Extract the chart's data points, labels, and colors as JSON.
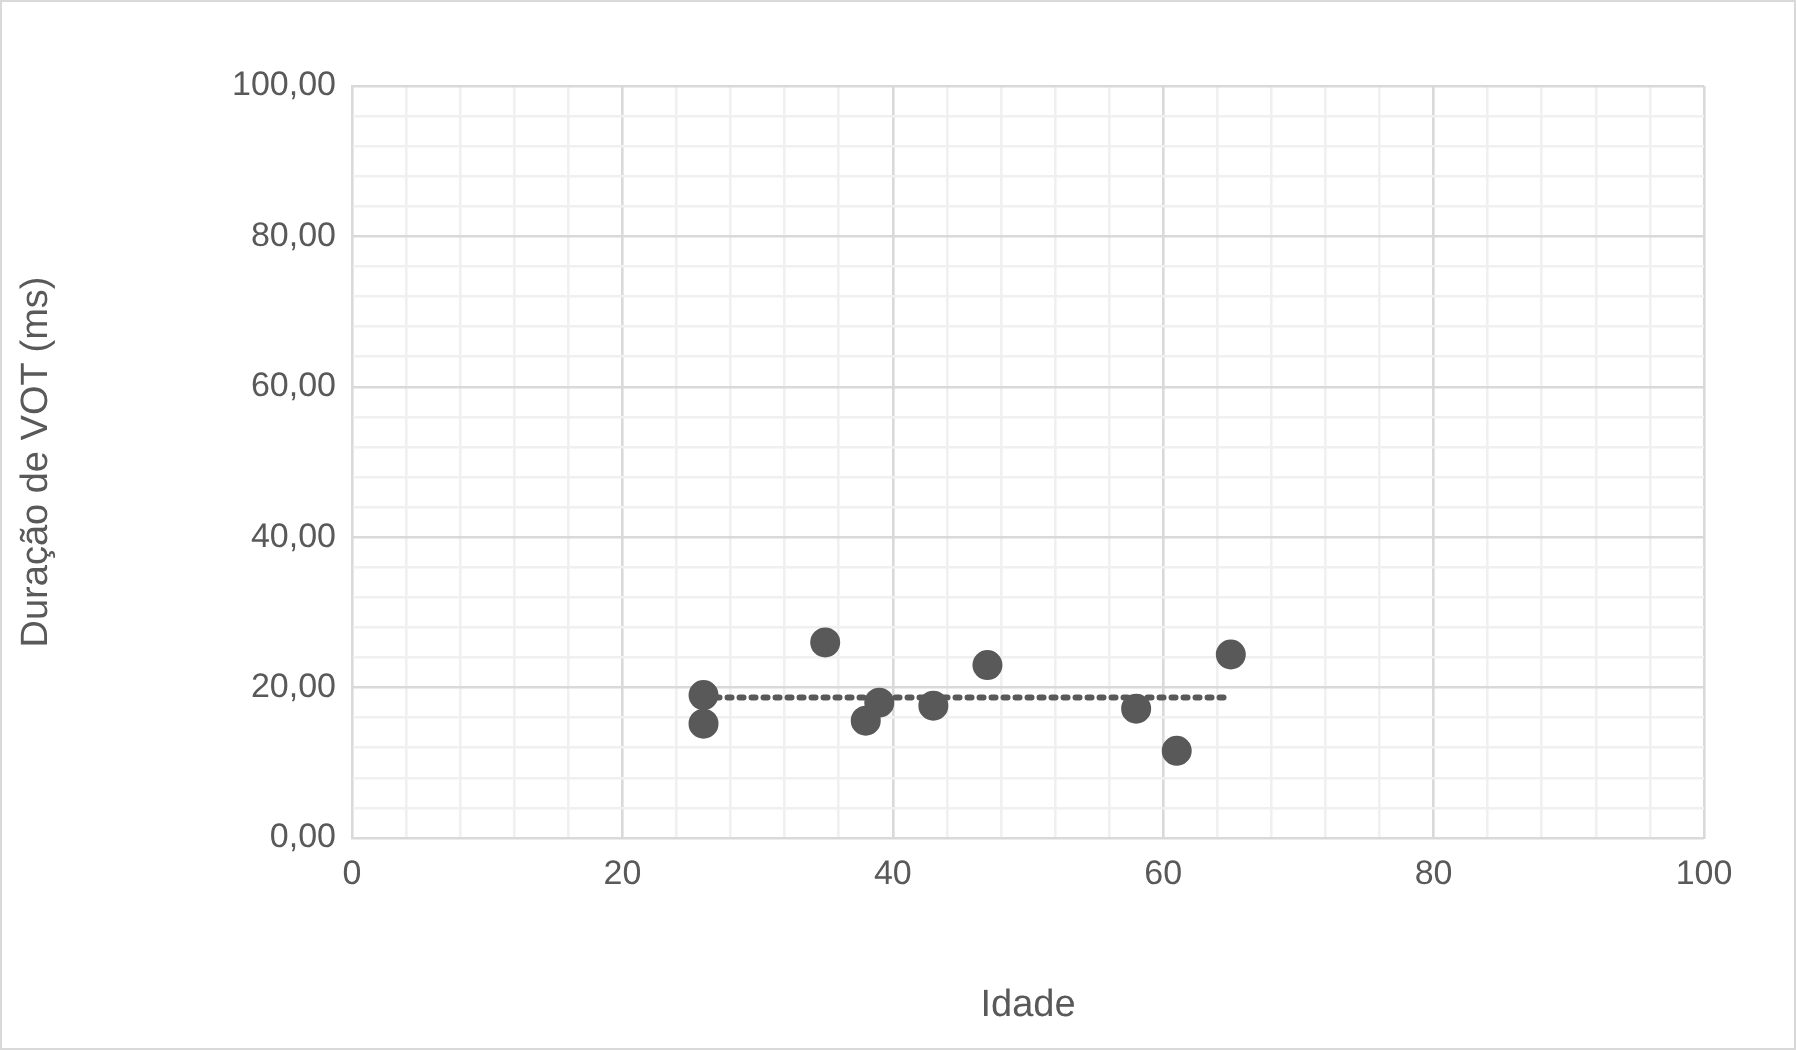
{
  "chart_data": {
    "type": "scatter",
    "xlabel": "Idade",
    "ylabel": "Duração de VOT (ms)",
    "series": [
      {
        "color": "#595959",
        "x": [
          26,
          26,
          35,
          38,
          39,
          43,
          47,
          58,
          61,
          65
        ],
        "values": [
          19,
          15.2,
          26,
          15.6,
          18,
          17.6,
          23,
          17.2,
          11.6,
          24.4
        ]
      },
      {
        "type": "line",
        "color": "#595959",
        "x": [
          26,
          65
        ],
        "values": [
          18.7,
          18.7
        ],
        "line_style": "dotted",
        "marker": "none"
      }
    ],
    "xlim": [
      0,
      100
    ],
    "xticks": [
      0,
      {
        "value": 4,
        "label": null
      },
      {
        "value": 8,
        "label": null
      },
      {
        "value": 12,
        "label": null
      },
      {
        "value": 16,
        "label": null
      },
      20,
      {
        "value": 24,
        "label": null
      },
      {
        "value": 28,
        "label": null
      },
      {
        "value": 32,
        "label": null
      },
      {
        "value": 36,
        "label": null
      },
      40,
      {
        "value": 44,
        "label": null
      },
      {
        "value": 48,
        "label": null
      },
      {
        "value": 52,
        "label": null
      },
      {
        "value": 56,
        "label": null
      },
      60,
      {
        "value": 64,
        "label": null
      },
      {
        "value": 68,
        "label": null
      },
      {
        "value": 72,
        "label": null
      },
      {
        "value": 76,
        "label": null
      },
      80,
      {
        "value": 84,
        "label": null
      },
      {
        "value": 88,
        "label": null
      },
      {
        "value": 92,
        "label": null
      },
      {
        "value": 96,
        "label": null
      },
      100
    ],
    "ylim": [
      0,
      100
    ],
    "yticks": [
      {
        "value": 0,
        "label": "0,00"
      },
      {
        "value": 4,
        "label": null
      },
      {
        "value": 8,
        "label": null
      },
      {
        "value": 12,
        "label": null
      },
      {
        "value": 16,
        "label": null
      },
      {
        "value": 20,
        "label": "20,00"
      },
      {
        "value": 24,
        "label": null
      },
      {
        "value": 28,
        "label": null
      },
      {
        "value": 32,
        "label": null
      },
      {
        "value": 36,
        "label": null
      },
      {
        "value": 40,
        "label": "40,00"
      },
      {
        "value": 44,
        "label": null
      },
      {
        "value": 48,
        "label": null
      },
      {
        "value": 52,
        "label": null
      },
      {
        "value": 56,
        "label": null
      },
      {
        "value": 60,
        "label": "60,00"
      },
      {
        "value": 64,
        "label": null
      },
      {
        "value": 68,
        "label": null
      },
      {
        "value": 72,
        "label": null
      },
      {
        "value": 76,
        "label": null
      },
      {
        "value": 80,
        "label": "80,00"
      },
      {
        "value": 84,
        "label": null
      },
      {
        "value": 88,
        "label": null
      },
      {
        "value": 92,
        "label": null
      },
      {
        "value": 96,
        "label": null
      },
      {
        "value": 100,
        "label": "100,00"
      }
    ],
    "grid": true,
    "marker": "circle"
  }
}
